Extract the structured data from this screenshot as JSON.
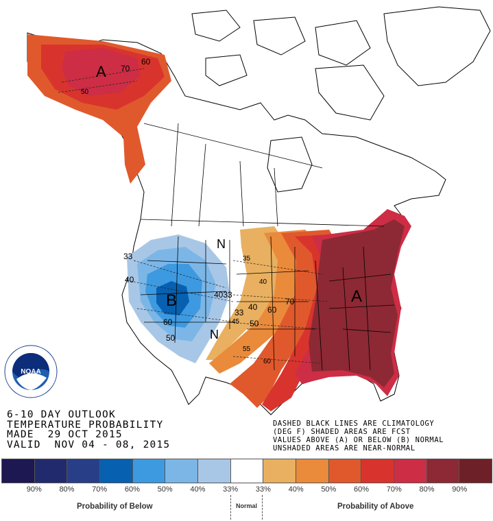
{
  "title": {
    "line1": "6-10 DAY OUTLOOK",
    "line2": "TEMPERATURE PROBABILITY",
    "line3": "MADE  29 OCT 2015",
    "line4": "VALID  NOV 04 - 08, 2015"
  },
  "notes": {
    "line1": "DASHED BLACK LINES ARE CLIMATOLOGY",
    "line2": "(DEG F) SHADED AREAS ARE FCST",
    "line3": "VALUES ABOVE (A) OR BELOW (B) NORMAL",
    "line4": "UNSHADED AREAS ARE NEAR-NORMAL"
  },
  "logo": {
    "text": "NOAA",
    "ring_text": "NATIONAL OCEANIC AND ATMOSPHERIC ADMINISTRATION · U.S. DEPARTMENT OF COMMERCE"
  },
  "map_labels": {
    "above_ak": "A",
    "above_east": "A",
    "below_west": "B",
    "normal_1": "N",
    "normal_2": "N",
    "ak_70": "70",
    "ak_60": "60",
    "ak_50": "50",
    "w_33": "33",
    "w_40": "40",
    "w_60": "60",
    "w_50": "50",
    "c_4033": "4033",
    "c_35": "35",
    "c_40a": "40",
    "c_40b": "40",
    "c_33": "33",
    "c_45": "45",
    "c_50": "50",
    "c_60a": "60",
    "c_70": "70",
    "c_55": "55",
    "c_60b": "60"
  },
  "legend": {
    "colors": [
      "#1d1752",
      "#222a6e",
      "#283f88",
      "#0760b0",
      "#3d9ae0",
      "#7cb6e6",
      "#a8c7e6",
      "#ffffff",
      "#e8b060",
      "#ea8a3b",
      "#e0592c",
      "#d8342d",
      "#cd2d45",
      "#8c2934",
      "#6e2028"
    ],
    "labels": [
      "90%",
      "80%",
      "70%",
      "60%",
      "50%",
      "40%",
      "33%",
      "33%",
      "40%",
      "50%",
      "60%",
      "70%",
      "80%",
      "90%"
    ],
    "below_caption": "Probability of Below",
    "normal_caption": "Normal",
    "above_caption": "Probability of Above"
  }
}
